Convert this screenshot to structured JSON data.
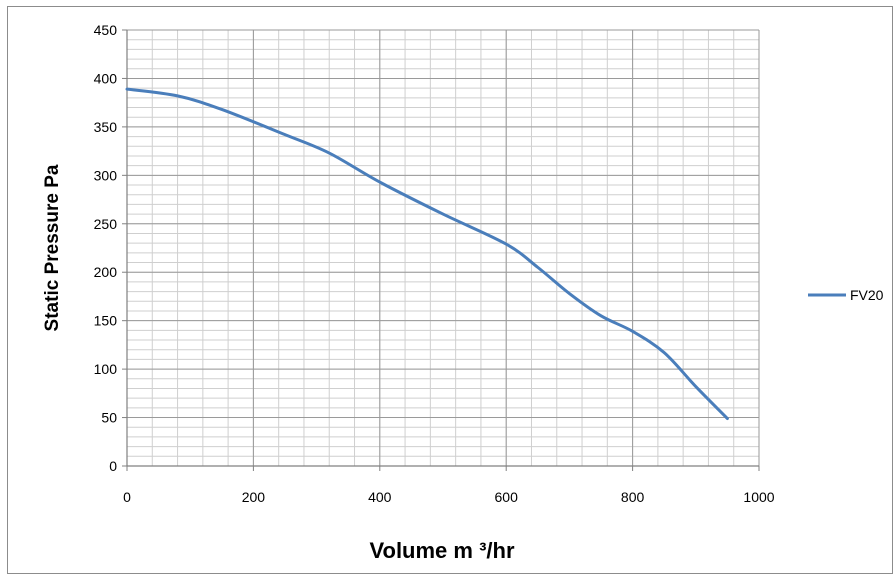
{
  "chart_data": {
    "type": "line",
    "xlabel": "Volume m ³/hr",
    "ylabel": "Static Pressure Pa",
    "xlim": [
      0,
      1000
    ],
    "ylim": [
      0,
      450
    ],
    "x_ticks": [
      0,
      200,
      400,
      600,
      800,
      1000
    ],
    "y_ticks": [
      0,
      50,
      100,
      150,
      200,
      250,
      300,
      350,
      400,
      450
    ],
    "x_minor_step": 40,
    "y_minor_step": 10,
    "grid": true,
    "legend_position": "right",
    "series": [
      {
        "name": "FV20",
        "color": "#4a7ebb",
        "x": [
          0,
          80,
          150,
          250,
          320,
          400,
          500,
          600,
          650,
          700,
          750,
          800,
          850,
          900,
          950
        ],
        "y": [
          389,
          382,
          368,
          342,
          323,
          293,
          260,
          229,
          205,
          178,
          155,
          139,
          117,
          82,
          49
        ]
      }
    ]
  }
}
